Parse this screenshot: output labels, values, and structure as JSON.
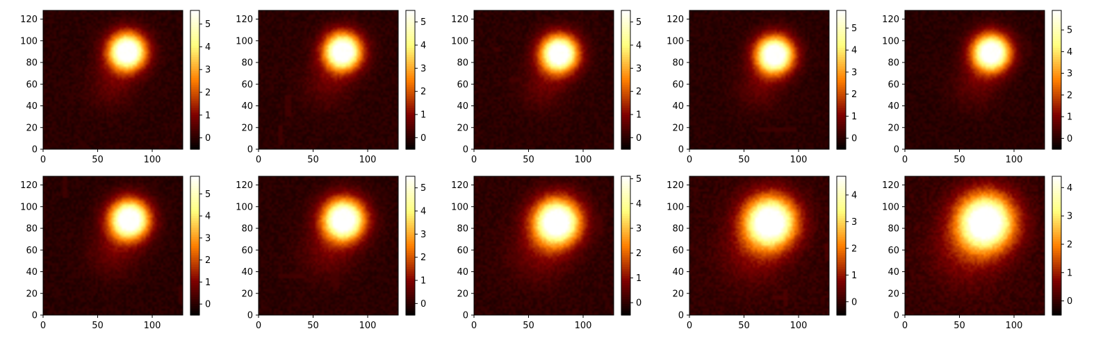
{
  "chart_data": [
    {
      "type": "heatmap",
      "xlim": [
        0,
        128
      ],
      "ylim": [
        0,
        128
      ],
      "xticks": [
        "0",
        "50",
        "100"
      ],
      "yticks": [
        "0",
        "20",
        "40",
        "60",
        "80",
        "100",
        "120"
      ],
      "colormap": "afmhot",
      "colorbar": {
        "range": [
          -0.5,
          5.6
        ],
        "ticks": [
          "0",
          "1",
          "2",
          "3",
          "4",
          "5"
        ]
      },
      "blob": {
        "center": [
          77,
          90
        ],
        "radius": 16,
        "peak": 5.6,
        "tail": [
          63,
          60,
          0.55
        ]
      },
      "artifacts": []
    },
    {
      "type": "heatmap",
      "xlim": [
        0,
        128
      ],
      "ylim": [
        0,
        128
      ],
      "xticks": [
        "0",
        "50",
        "100"
      ],
      "yticks": [
        "0",
        "20",
        "40",
        "60",
        "80",
        "100",
        "120"
      ],
      "colormap": "afmhot",
      "colorbar": {
        "range": [
          -0.5,
          5.5
        ],
        "ticks": [
          "0",
          "1",
          "2",
          "3",
          "4",
          "5"
        ]
      },
      "blob": {
        "center": [
          77,
          90
        ],
        "radius": 16,
        "peak": 5.5,
        "tail": [
          63,
          60,
          0.55
        ]
      },
      "artifacts": [
        {
          "x": [
            24,
            30
          ],
          "y": [
            31,
            49
          ]
        },
        {
          "x": [
            19,
            22
          ],
          "y": [
            5,
            22
          ]
        }
      ]
    },
    {
      "type": "heatmap",
      "xlim": [
        0,
        128
      ],
      "ylim": [
        0,
        128
      ],
      "xticks": [
        "0",
        "50",
        "100"
      ],
      "yticks": [
        "0",
        "20",
        "40",
        "60",
        "80",
        "100",
        "120"
      ],
      "colormap": "afmhot",
      "colorbar": {
        "range": [
          -0.5,
          5.5
        ],
        "ticks": [
          "0",
          "1",
          "2",
          "3",
          "4",
          "5"
        ]
      },
      "blob": {
        "center": [
          78,
          88
        ],
        "radius": 16,
        "peak": 5.5,
        "tail": [
          64,
          58,
          0.55
        ]
      },
      "artifacts": [
        {
          "x": [
            33,
            43
          ],
          "y": [
            62,
            66
          ]
        },
        {
          "x": [
            19,
            23
          ],
          "y": [
            90,
            93
          ]
        }
      ]
    },
    {
      "type": "heatmap",
      "xlim": [
        0,
        128
      ],
      "ylim": [
        0,
        128
      ],
      "xticks": [
        "0",
        "50",
        "100"
      ],
      "yticks": [
        "0",
        "20",
        "40",
        "60",
        "80",
        "100",
        "120"
      ],
      "colormap": "afmhot",
      "colorbar": {
        "range": [
          -0.5,
          5.8
        ],
        "ticks": [
          "0",
          "1",
          "2",
          "3",
          "4",
          "5"
        ]
      },
      "blob": {
        "center": [
          78,
          87
        ],
        "radius": 16,
        "peak": 5.8,
        "tail": [
          64,
          57,
          0.55
        ]
      },
      "artifacts": [
        {
          "x": [
            63,
            97
          ],
          "y": [
            16,
            19
          ]
        }
      ]
    },
    {
      "type": "heatmap",
      "xlim": [
        0,
        128
      ],
      "ylim": [
        0,
        128
      ],
      "xticks": [
        "0",
        "50",
        "100"
      ],
      "yticks": [
        "0",
        "20",
        "40",
        "60",
        "80",
        "100",
        "120"
      ],
      "colormap": "afmhot",
      "colorbar": {
        "range": [
          -0.5,
          5.9
        ],
        "ticks": [
          "0",
          "1",
          "2",
          "3",
          "4",
          "5"
        ]
      },
      "blob": {
        "center": [
          79,
          89
        ],
        "radius": 16,
        "peak": 5.9,
        "tail": [
          65,
          59,
          0.55
        ]
      },
      "artifacts": [
        {
          "x": [
            113,
            116
          ],
          "y": [
            86,
            100
          ]
        }
      ]
    },
    {
      "type": "heatmap",
      "xlim": [
        0,
        128
      ],
      "ylim": [
        0,
        128
      ],
      "xticks": [
        "0",
        "50",
        "100"
      ],
      "yticks": [
        "0",
        "20",
        "40",
        "60",
        "80",
        "100",
        "120"
      ],
      "colormap": "afmhot",
      "colorbar": {
        "range": [
          -0.5,
          5.8
        ],
        "ticks": [
          "0",
          "1",
          "2",
          "3",
          "4",
          "5"
        ]
      },
      "blob": {
        "center": [
          79,
          88
        ],
        "radius": 17,
        "peak": 5.8,
        "tail": [
          64,
          58,
          0.6
        ]
      },
      "artifacts": [
        {
          "x": [
            18,
            21
          ],
          "y": [
            108,
            128
          ]
        },
        {
          "x": [
            125,
            128
          ],
          "y": [
            10,
            25
          ]
        }
      ]
    },
    {
      "type": "heatmap",
      "xlim": [
        0,
        128
      ],
      "ylim": [
        0,
        128
      ],
      "xticks": [
        "0",
        "50",
        "100"
      ],
      "yticks": [
        "0",
        "20",
        "40",
        "60",
        "80",
        "100",
        "120"
      ],
      "colormap": "afmhot",
      "colorbar": {
        "range": [
          -0.5,
          5.5
        ],
        "ticks": [
          "0",
          "1",
          "2",
          "3",
          "4",
          "5"
        ]
      },
      "blob": {
        "center": [
          78,
          88
        ],
        "radius": 18,
        "peak": 5.5,
        "tail": [
          63,
          57,
          0.6
        ]
      },
      "artifacts": [
        {
          "x": [
            19,
            42
          ],
          "y": [
            34,
            37
          ]
        },
        {
          "x": [
            67,
            73
          ],
          "y": [
            26,
            39
          ]
        }
      ]
    },
    {
      "type": "heatmap",
      "xlim": [
        0,
        128
      ],
      "ylim": [
        0,
        128
      ],
      "xticks": [
        "0",
        "50",
        "100"
      ],
      "yticks": [
        "0",
        "20",
        "40",
        "60",
        "80",
        "100",
        "120"
      ],
      "colormap": "afmhot",
      "colorbar": {
        "range": [
          -0.5,
          5.1
        ],
        "ticks": [
          "0",
          "1",
          "2",
          "3",
          "4",
          "5"
        ]
      },
      "blob": {
        "center": [
          76,
          86
        ],
        "radius": 20,
        "peak": 5.1,
        "tail": [
          60,
          57,
          0.65
        ]
      },
      "artifacts": [
        {
          "x": [
            113,
            118
          ],
          "y": [
            75,
            92
          ]
        },
        {
          "x": [
            31,
            43
          ],
          "y": [
            50,
            56
          ]
        }
      ]
    },
    {
      "type": "heatmap",
      "xlim": [
        0,
        128
      ],
      "ylim": [
        0,
        128
      ],
      "xticks": [
        "0",
        "50",
        "100"
      ],
      "yticks": [
        "0",
        "20",
        "40",
        "60",
        "80",
        "100",
        "120"
      ],
      "colormap": "afmhot",
      "colorbar": {
        "range": [
          -0.5,
          4.7
        ],
        "ticks": [
          "0",
          "1",
          "2",
          "3",
          "4"
        ]
      },
      "blob": {
        "center": [
          74,
          86
        ],
        "radius": 22,
        "peak": 4.7,
        "tail": [
          58,
          56,
          0.7
        ]
      },
      "artifacts": [
        {
          "x": [
            87,
            90
          ],
          "y": [
            8,
            24
          ]
        },
        {
          "x": [
            76,
            86
          ],
          "y": [
            14,
            17
          ]
        },
        {
          "x": [
            124,
            127
          ],
          "y": [
            50,
            66
          ]
        }
      ]
    },
    {
      "type": "heatmap",
      "xlim": [
        0,
        128
      ],
      "ylim": [
        0,
        128
      ],
      "xticks": [
        "0",
        "50",
        "100"
      ],
      "yticks": [
        "0",
        "20",
        "40",
        "60",
        "80",
        "100",
        "120"
      ],
      "colormap": "afmhot",
      "colorbar": {
        "range": [
          -0.5,
          4.4
        ],
        "ticks": [
          "0",
          "1",
          "2",
          "3",
          "4"
        ]
      },
      "blob": {
        "center": [
          74,
          86
        ],
        "radius": 24,
        "peak": 4.4,
        "tail": [
          57,
          57,
          0.75
        ]
      },
      "artifacts": [
        {
          "x": [
            114,
            118
          ],
          "y": [
            70,
            81
          ]
        }
      ]
    }
  ]
}
